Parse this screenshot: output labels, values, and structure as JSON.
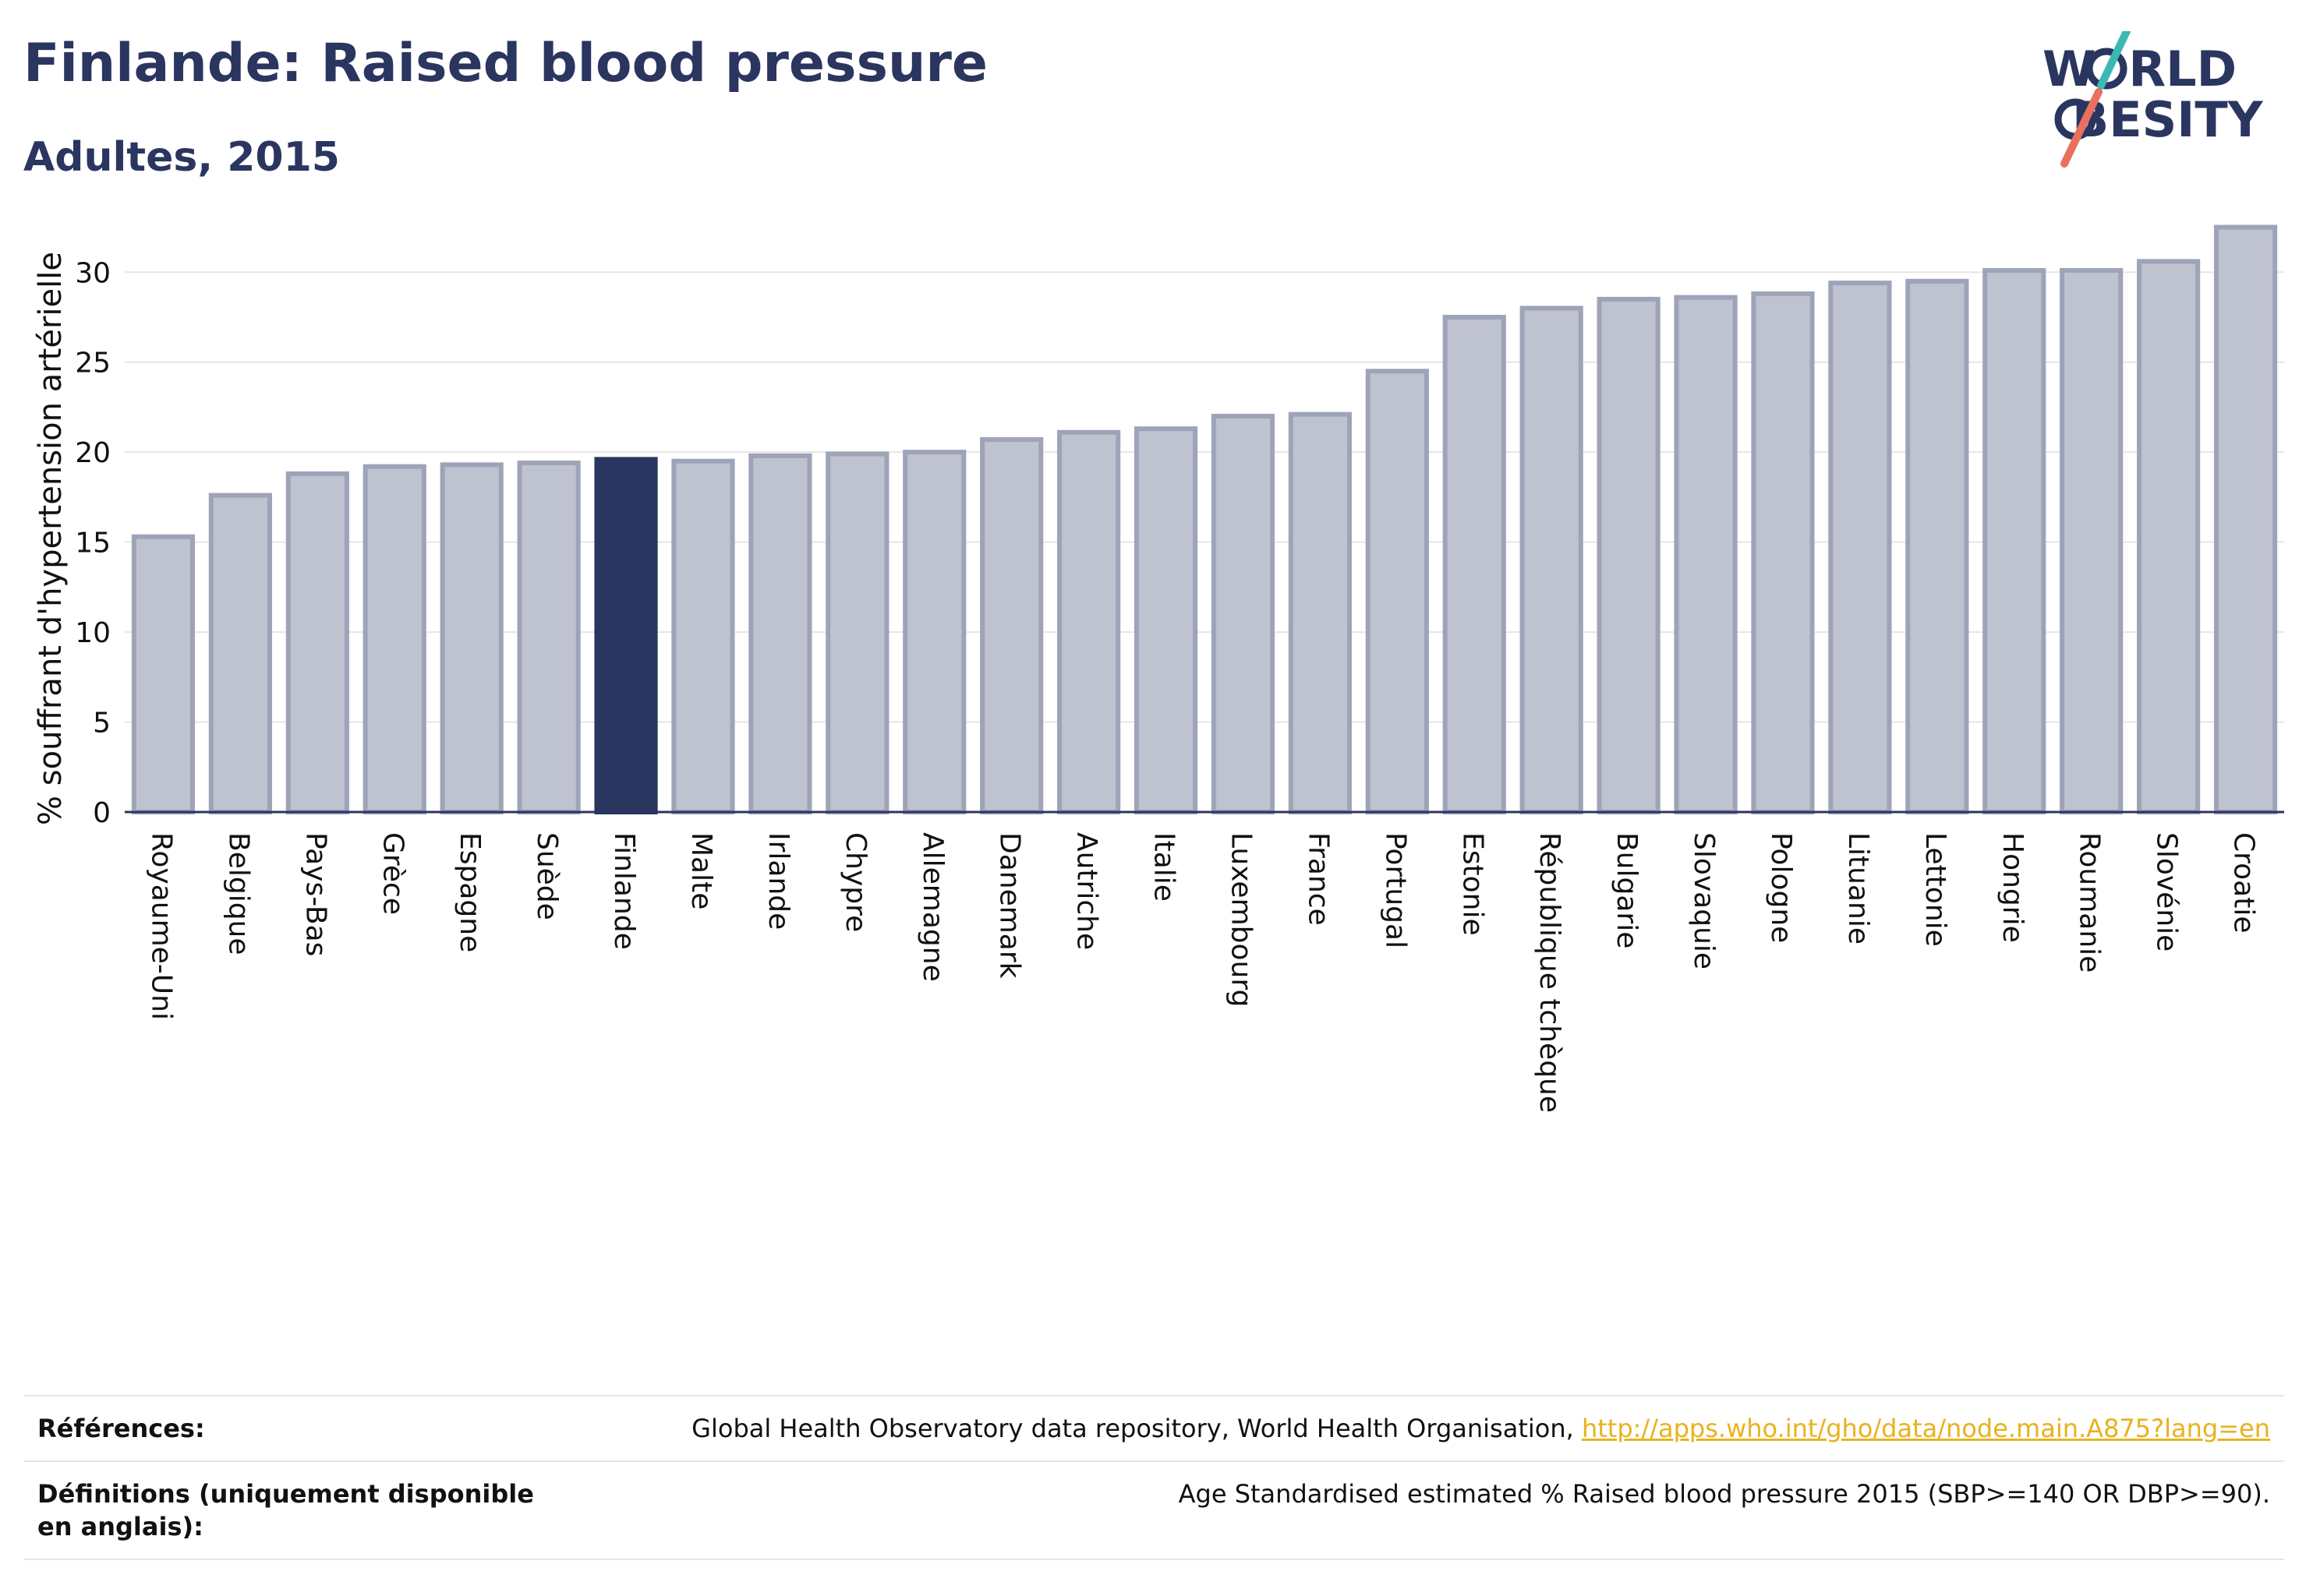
{
  "title": "Finlande: Raised blood pressure",
  "subtitle": "Adultes, 2015",
  "logo": {
    "line1_pre": "W",
    "line1_post": "RLD",
    "line2_pre": "",
    "line2_post": "BESITY"
  },
  "chart_data": {
    "type": "bar",
    "ylabel": "% souffrant d'hypertension artérielle",
    "xlabel": "",
    "ylim": [
      0,
      33
    ],
    "yticks": [
      0,
      5,
      10,
      15,
      20,
      25,
      30
    ],
    "grid": true,
    "highlight": "Finlande",
    "colors": {
      "bar": "#bfc2cf",
      "bar_edge": "#9ea3b8",
      "highlight": "#2a3560"
    },
    "categories": [
      "Royaume-Uni",
      "Belgique",
      "Pays-Bas",
      "Grèce",
      "Espagne",
      "Suède",
      "Finlande",
      "Malte",
      "Irlande",
      "Chypre",
      "Allemagne",
      "Danemark",
      "Autriche",
      "Italie",
      "Luxembourg",
      "France",
      "Portugal",
      "Estonie",
      "République tchèque",
      "Bulgarie",
      "Slovaquie",
      "Pologne",
      "Lituanie",
      "Lettonie",
      "Hongrie",
      "Roumanie",
      "Slovénie",
      "Croatie"
    ],
    "values": [
      15.3,
      17.6,
      18.8,
      19.2,
      19.3,
      19.4,
      19.6,
      19.5,
      19.8,
      19.9,
      20.0,
      20.7,
      21.1,
      21.3,
      22.0,
      22.1,
      24.5,
      27.5,
      28.0,
      28.5,
      28.6,
      28.8,
      29.4,
      29.5,
      30.1,
      30.1,
      30.6,
      32.5
    ]
  },
  "references": {
    "label": "Références:",
    "text": "Global Health Observatory data repository, World Health Organisation, ",
    "link": "http://apps.who.int/gho/data/node.main.A875?lang=en"
  },
  "definitions": {
    "label": "Définitions (uniquement disponible en anglais):",
    "text": "Age Standardised estimated % Raised blood pressure 2015 (SBP>=140 OR DBP>=90)."
  }
}
